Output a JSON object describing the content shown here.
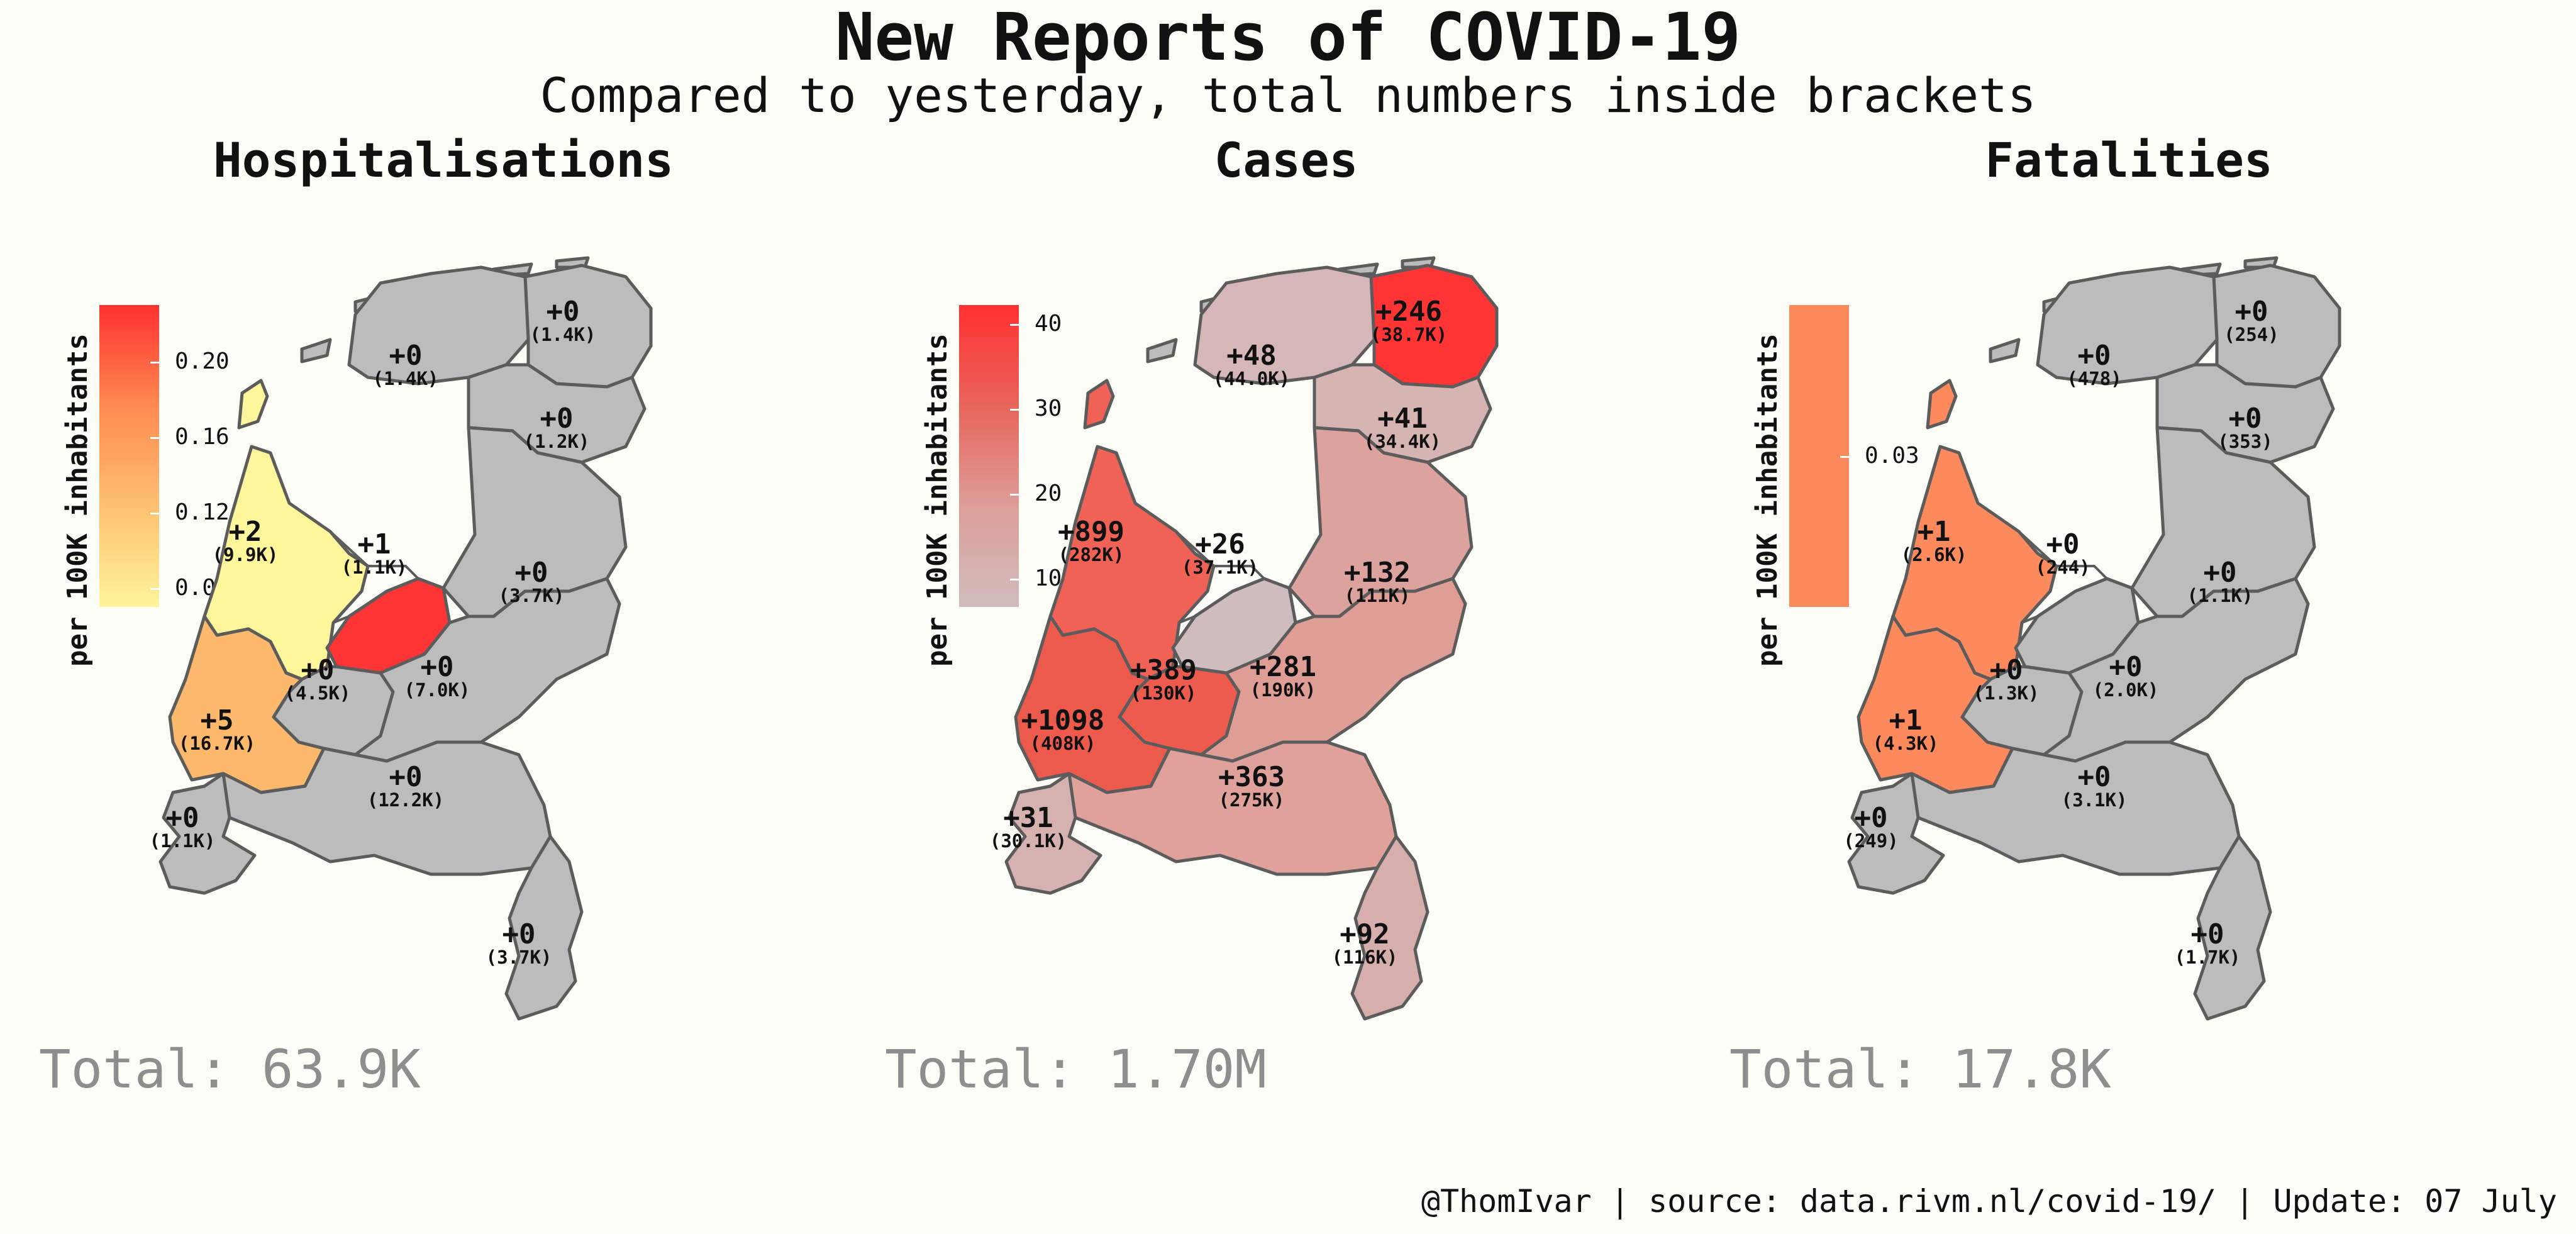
{
  "title": "New Reports of COVID-19",
  "subtitle": "Compared to yesterday, total numbers inside brackets",
  "footer": "@ThomIvar | source: data.rivm.nl/covid-19/ | Update: 07 July",
  "colors": {
    "none": "#bcbcbc",
    "water_bg": "#fdfdf7"
  },
  "panels": [
    {
      "title": "Hospitalisations",
      "legend_title": "per 100K inhabitants",
      "legend_ticks": [
        "0.20",
        "0.16",
        "0.12",
        "0.08"
      ],
      "legend_gradient": [
        "#ff3030",
        "#ff8a50",
        "#fdc070",
        "#fff59a"
      ],
      "total": "Total: 63.9K",
      "provinces": {
        "groningen": {
          "change": "+0",
          "total": "(1.4K)",
          "fill": "#bcbcbc"
        },
        "friesland": {
          "change": "+0",
          "total": "(1.4K)",
          "fill": "#bcbcbc"
        },
        "drenthe": {
          "change": "+0",
          "total": "(1.2K)",
          "fill": "#bcbcbc"
        },
        "noord-holland": {
          "change": "+2",
          "total": "(9.9K)",
          "fill": "#fff59a"
        },
        "flevoland": {
          "change": "+1",
          "total": "(1.1K)",
          "fill": "#ff3434"
        },
        "overijssel": {
          "change": "+0",
          "total": "(3.7K)",
          "fill": "#bcbcbc"
        },
        "utrecht": {
          "change": "+0",
          "total": "(4.5K)",
          "fill": "#bcbcbc"
        },
        "gelderland": {
          "change": "+0",
          "total": "(7.0K)",
          "fill": "#bcbcbc"
        },
        "zuid-holland": {
          "change": "+5",
          "total": "(16.7K)",
          "fill": "#fdb96b"
        },
        "noord-brabant": {
          "change": "+0",
          "total": "(12.2K)",
          "fill": "#bcbcbc"
        },
        "zeeland": {
          "change": "+0",
          "total": "(1.1K)",
          "fill": "#bcbcbc"
        },
        "limburg": {
          "change": "+0",
          "total": "(3.7K)",
          "fill": "#bcbcbc"
        }
      }
    },
    {
      "title": "Cases",
      "legend_title": "per 100K inhabitants",
      "legend_ticks": [
        "40",
        "30",
        "20",
        "10"
      ],
      "legend_gradient": [
        "#ff3030",
        "#e8655b",
        "#dc9e98",
        "#d0bcbc"
      ],
      "total": "Total: 1.70M",
      "provinces": {
        "groningen": {
          "change": "+246",
          "total": "(38.7K)",
          "fill": "#ff3434"
        },
        "friesland": {
          "change": "+48",
          "total": "(44.0K)",
          "fill": "#d4b7b6"
        },
        "drenthe": {
          "change": "+41",
          "total": "(34.4K)",
          "fill": "#d5b4b2"
        },
        "noord-holland": {
          "change": "+899",
          "total": "(282K)",
          "fill": "#ef6255"
        },
        "flevoland": {
          "change": "+26",
          "total": "(37.1K)",
          "fill": "#cfbcbc"
        },
        "overijssel": {
          "change": "+132",
          "total": "(111K)",
          "fill": "#dca39e"
        },
        "utrecht": {
          "change": "+389",
          "total": "(130K)",
          "fill": "#ec5b4d"
        },
        "gelderland": {
          "change": "+281",
          "total": "(190K)",
          "fill": "#de9e96"
        },
        "zuid-holland": {
          "change": "+1098",
          "total": "(408K)",
          "fill": "#ec5a4c"
        },
        "noord-brabant": {
          "change": "+363",
          "total": "(275K)",
          "fill": "#dea29a"
        },
        "zeeland": {
          "change": "+31",
          "total": "(30.1K)",
          "fill": "#d5b2b0"
        },
        "limburg": {
          "change": "+92",
          "total": "(116K)",
          "fill": "#d6aeab"
        }
      }
    },
    {
      "title": "Fatalities",
      "legend_title": "per 100K inhabitants",
      "legend_ticks": [
        "0.03"
      ],
      "legend_gradient": [
        "#fc8a5d",
        "#fc8a5d"
      ],
      "total": "Total: 17.8K",
      "provinces": {
        "groningen": {
          "change": "+0",
          "total": "(254)",
          "fill": "#bcbcbc"
        },
        "friesland": {
          "change": "+0",
          "total": "(478)",
          "fill": "#bcbcbc"
        },
        "drenthe": {
          "change": "+0",
          "total": "(353)",
          "fill": "#bcbcbc"
        },
        "noord-holland": {
          "change": "+1",
          "total": "(2.6K)",
          "fill": "#fc8a5d"
        },
        "flevoland": {
          "change": "+0",
          "total": "(244)",
          "fill": "#bcbcbc"
        },
        "overijssel": {
          "change": "+0",
          "total": "(1.1K)",
          "fill": "#bcbcbc"
        },
        "utrecht": {
          "change": "+0",
          "total": "(1.3K)",
          "fill": "#bcbcbc"
        },
        "gelderland": {
          "change": "+0",
          "total": "(2.0K)",
          "fill": "#bcbcbc"
        },
        "zuid-holland": {
          "change": "+1",
          "total": "(4.3K)",
          "fill": "#fc8a5d"
        },
        "noord-brabant": {
          "change": "+0",
          "total": "(3.1K)",
          "fill": "#bcbcbc"
        },
        "zeeland": {
          "change": "+0",
          "total": "(249)",
          "fill": "#bcbcbc"
        },
        "limburg": {
          "change": "+0",
          "total": "(1.7K)",
          "fill": "#bcbcbc"
        }
      }
    }
  ]
}
